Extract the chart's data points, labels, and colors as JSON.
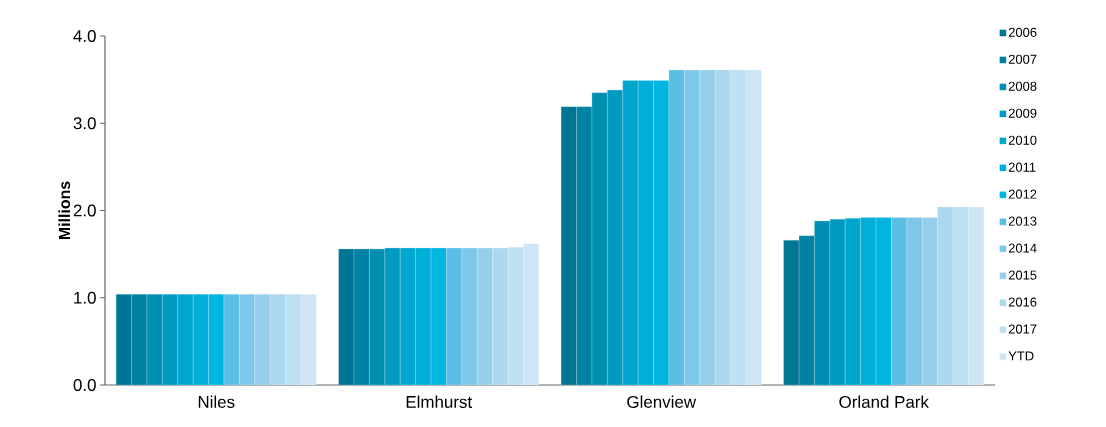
{
  "chart_data": {
    "type": "bar",
    "ylabel": "Millions",
    "categories": [
      "Niles",
      "Elmhurst",
      "Glenview",
      "Orland Park"
    ],
    "ylim": [
      0,
      4
    ],
    "yticks": [
      {
        "value": 0,
        "label": "0.0"
      },
      {
        "value": 1,
        "label": "1.0"
      },
      {
        "value": 2,
        "label": "2.0"
      },
      {
        "value": 3,
        "label": "3.0"
      },
      {
        "value": 4,
        "label": "4.0"
      }
    ],
    "grid": false,
    "legend": "right",
    "series": [
      {
        "name": "2006",
        "color": "#007694",
        "values": [
          1.04,
          1.56,
          3.19,
          1.66
        ]
      },
      {
        "name": "2007",
        "color": "#0082a3",
        "values": [
          1.04,
          1.56,
          3.19,
          1.71
        ]
      },
      {
        "name": "2008",
        "color": "#008fb2",
        "values": [
          1.04,
          1.56,
          3.35,
          1.88
        ]
      },
      {
        "name": "2009",
        "color": "#009ac0",
        "values": [
          1.04,
          1.57,
          3.38,
          1.9
        ]
      },
      {
        "name": "2010",
        "color": "#00a6cd",
        "values": [
          1.04,
          1.57,
          3.49,
          1.91
        ]
      },
      {
        "name": "2011",
        "color": "#00aed8",
        "values": [
          1.04,
          1.57,
          3.49,
          1.92
        ]
      },
      {
        "name": "2012",
        "color": "#00b6e0",
        "values": [
          1.04,
          1.57,
          3.49,
          1.92
        ]
      },
      {
        "name": "2013",
        "color": "#5bbfe5",
        "values": [
          1.04,
          1.57,
          3.61,
          1.92
        ]
      },
      {
        "name": "2014",
        "color": "#7fc7e8",
        "values": [
          1.04,
          1.57,
          3.61,
          1.92
        ]
      },
      {
        "name": "2015",
        "color": "#96cfec",
        "values": [
          1.04,
          1.57,
          3.61,
          1.92
        ]
      },
      {
        "name": "2016",
        "color": "#acd8ef",
        "values": [
          1.04,
          1.57,
          3.61,
          2.04
        ]
      },
      {
        "name": "2017",
        "color": "#bde0f2",
        "values": [
          1.04,
          1.58,
          3.61,
          2.04
        ]
      },
      {
        "name": "YTD",
        "color": "#cde5f4",
        "values": [
          1.04,
          1.62,
          3.61,
          2.04
        ]
      }
    ]
  }
}
